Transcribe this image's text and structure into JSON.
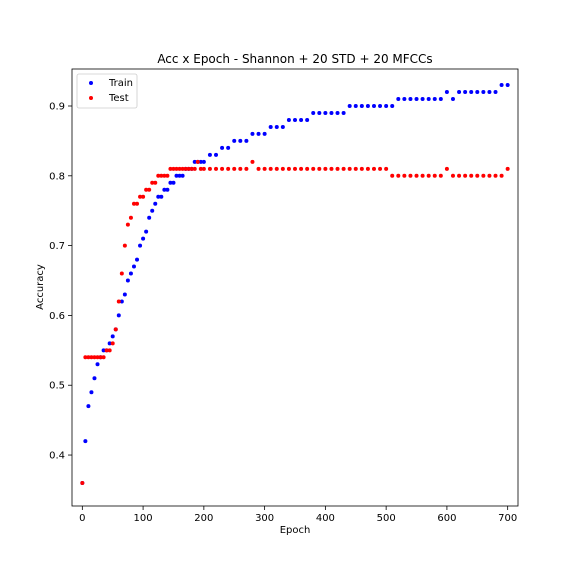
{
  "chart_data": {
    "type": "scatter",
    "title": "Acc x Epoch - Shannon + 20 STD + 20 MFCCs",
    "xlabel": "Epoch",
    "ylabel": "Accuracy",
    "xlim": [
      -17,
      717
    ],
    "ylim": [
      0.327,
      0.953
    ],
    "xticks": [
      0,
      100,
      200,
      300,
      400,
      500,
      600,
      700
    ],
    "xtick_labels": [
      "0",
      "100",
      "200",
      "300",
      "400",
      "500",
      "600",
      "700"
    ],
    "yticks": [
      0.4,
      0.5,
      0.6,
      0.7,
      0.8,
      0.9
    ],
    "ytick_labels": [
      "0.4",
      "0.5",
      "0.6",
      "0.7",
      "0.8",
      "0.9"
    ],
    "grid": false,
    "legend_position": "top-left",
    "series": [
      {
        "name": "Train",
        "color": "#0000ff",
        "x": [
          0,
          5,
          10,
          15,
          20,
          25,
          30,
          35,
          40,
          45,
          50,
          55,
          60,
          65,
          70,
          75,
          80,
          85,
          90,
          95,
          100,
          105,
          110,
          115,
          120,
          125,
          130,
          135,
          140,
          145,
          150,
          155,
          160,
          165,
          170,
          175,
          180,
          185,
          190,
          195,
          200,
          210,
          220,
          230,
          240,
          250,
          260,
          270,
          280,
          290,
          300,
          310,
          320,
          330,
          340,
          350,
          360,
          370,
          380,
          390,
          400,
          410,
          420,
          430,
          440,
          450,
          460,
          470,
          480,
          490,
          500,
          510,
          520,
          530,
          540,
          550,
          560,
          570,
          580,
          590,
          600,
          610,
          620,
          630,
          640,
          650,
          660,
          670,
          680,
          690,
          700
        ],
        "y": [
          0.36,
          0.42,
          0.47,
          0.49,
          0.51,
          0.53,
          0.54,
          0.55,
          0.55,
          0.56,
          0.57,
          0.58,
          0.6,
          0.62,
          0.63,
          0.65,
          0.66,
          0.67,
          0.68,
          0.7,
          0.71,
          0.72,
          0.74,
          0.75,
          0.76,
          0.77,
          0.77,
          0.78,
          0.78,
          0.79,
          0.79,
          0.8,
          0.8,
          0.8,
          0.81,
          0.81,
          0.81,
          0.82,
          0.82,
          0.82,
          0.82,
          0.83,
          0.83,
          0.84,
          0.84,
          0.85,
          0.85,
          0.85,
          0.86,
          0.86,
          0.86,
          0.87,
          0.87,
          0.87,
          0.88,
          0.88,
          0.88,
          0.88,
          0.89,
          0.89,
          0.89,
          0.89,
          0.89,
          0.89,
          0.9,
          0.9,
          0.9,
          0.9,
          0.9,
          0.9,
          0.9,
          0.9,
          0.91,
          0.91,
          0.91,
          0.91,
          0.91,
          0.91,
          0.91,
          0.91,
          0.92,
          0.91,
          0.92,
          0.92,
          0.92,
          0.92,
          0.92,
          0.92,
          0.92,
          0.93,
          0.93
        ]
      },
      {
        "name": "Test",
        "color": "#ff0000",
        "x": [
          0,
          5,
          10,
          15,
          20,
          25,
          30,
          35,
          40,
          45,
          50,
          55,
          60,
          65,
          70,
          75,
          80,
          85,
          90,
          95,
          100,
          105,
          110,
          115,
          120,
          125,
          130,
          135,
          140,
          145,
          150,
          155,
          160,
          165,
          170,
          175,
          180,
          185,
          190,
          195,
          200,
          210,
          220,
          230,
          240,
          250,
          260,
          270,
          280,
          290,
          300,
          310,
          320,
          330,
          340,
          350,
          360,
          370,
          380,
          390,
          400,
          410,
          420,
          430,
          440,
          450,
          460,
          470,
          480,
          490,
          500,
          510,
          520,
          530,
          540,
          550,
          560,
          570,
          580,
          590,
          600,
          610,
          620,
          630,
          640,
          650,
          660,
          670,
          680,
          690,
          700
        ],
        "y": [
          0.36,
          0.54,
          0.54,
          0.54,
          0.54,
          0.54,
          0.54,
          0.54,
          0.55,
          0.55,
          0.56,
          0.58,
          0.62,
          0.66,
          0.7,
          0.73,
          0.74,
          0.76,
          0.76,
          0.77,
          0.77,
          0.78,
          0.78,
          0.79,
          0.79,
          0.8,
          0.8,
          0.8,
          0.8,
          0.81,
          0.81,
          0.81,
          0.81,
          0.81,
          0.81,
          0.81,
          0.81,
          0.81,
          0.82,
          0.81,
          0.81,
          0.81,
          0.81,
          0.81,
          0.81,
          0.81,
          0.81,
          0.81,
          0.82,
          0.81,
          0.81,
          0.81,
          0.81,
          0.81,
          0.81,
          0.81,
          0.81,
          0.81,
          0.81,
          0.81,
          0.81,
          0.81,
          0.81,
          0.81,
          0.81,
          0.81,
          0.81,
          0.81,
          0.81,
          0.81,
          0.81,
          0.8,
          0.8,
          0.8,
          0.8,
          0.8,
          0.8,
          0.8,
          0.8,
          0.8,
          0.81,
          0.8,
          0.8,
          0.8,
          0.8,
          0.8,
          0.8,
          0.8,
          0.8,
          0.8,
          0.81
        ]
      }
    ]
  }
}
